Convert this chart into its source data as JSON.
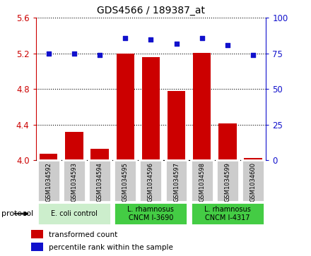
{
  "title": "GDS4566 / 189387_at",
  "samples": [
    "GSM1034592",
    "GSM1034593",
    "GSM1034594",
    "GSM1034595",
    "GSM1034596",
    "GSM1034597",
    "GSM1034598",
    "GSM1034599",
    "GSM1034600"
  ],
  "transformed_count": [
    4.07,
    4.32,
    4.13,
    5.2,
    5.16,
    4.78,
    5.21,
    4.41,
    4.02
  ],
  "percentile_rank": [
    75,
    75,
    74,
    86,
    85,
    82,
    86,
    81,
    74
  ],
  "ylim_left": [
    4.0,
    5.6
  ],
  "ylim_right": [
    0,
    100
  ],
  "yticks_left": [
    4.0,
    4.4,
    4.8,
    5.2,
    5.6
  ],
  "yticks_right": [
    0,
    25,
    50,
    75,
    100
  ],
  "bar_color": "#cc0000",
  "dot_color": "#1111cc",
  "group_configs": [
    {
      "indices": [
        0,
        1,
        2
      ],
      "label": "E. coli control",
      "color": "#cceecc"
    },
    {
      "indices": [
        3,
        4,
        5
      ],
      "label": "L. rhamnosus\nCNCM I-3690",
      "color": "#44cc44"
    },
    {
      "indices": [
        6,
        7,
        8
      ],
      "label": "L. rhamnosus\nCNCM I-4317",
      "color": "#44cc44"
    }
  ],
  "protocol_label": "protocol",
  "legend_items": [
    {
      "label": "transformed count",
      "color": "#cc0000"
    },
    {
      "label": "percentile rank within the sample",
      "color": "#1111cc"
    }
  ],
  "axis_color_left": "#cc0000",
  "axis_color_right": "#1111cc",
  "bar_bottom": 4.0,
  "bar_width": 0.7,
  "sample_box_color": "#cccccc",
  "sample_box_edge": "#ffffff"
}
